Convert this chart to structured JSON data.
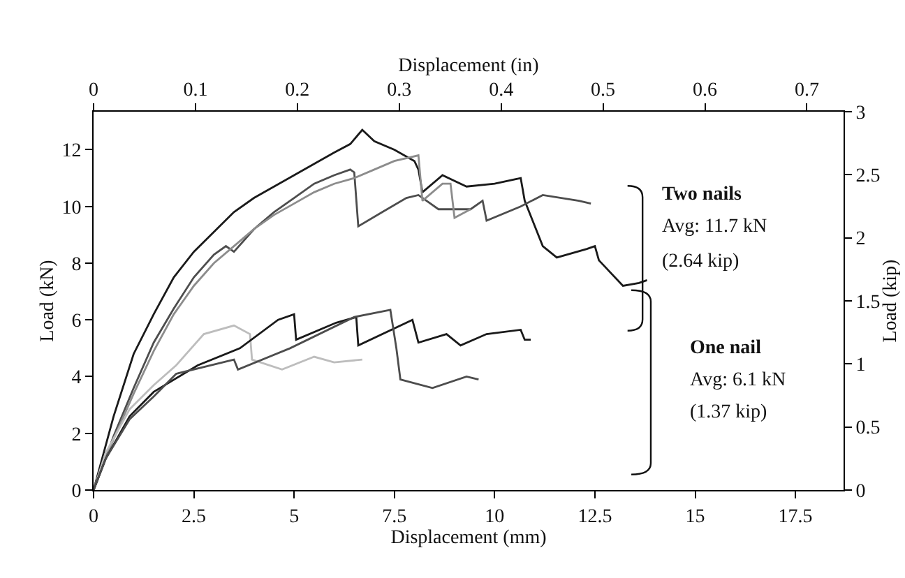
{
  "chart_data": {
    "type": "line",
    "xlabel": "Displacement (mm)",
    "ylabel": "Load (kN)",
    "x2label": "Displacement (in)",
    "y2label": "Load (kip)",
    "xlim": [
      0,
      18.7
    ],
    "xticks": [
      0,
      2.5,
      5,
      7.5,
      10,
      12.5,
      15,
      17.5
    ],
    "x2lim": [
      0,
      0.736
    ],
    "x2ticks": [
      0,
      0.1,
      0.2,
      0.3,
      0.4,
      0.5,
      0.6,
      0.7
    ],
    "ylim": [
      0,
      13.34
    ],
    "yticks": [
      0,
      2,
      4,
      6,
      8,
      10,
      12
    ],
    "y2lim": [
      0,
      3
    ],
    "y2ticks": [
      0,
      0.5,
      1,
      1.5,
      2,
      2.5,
      3
    ],
    "marker": "none",
    "line_style": "solid",
    "annotations": [
      "Two nails",
      "Avg: 11.7 kN",
      "(2.64 kip)",
      "One nail",
      "Avg: 6.1 kN",
      "(1.37 kip)"
    ],
    "series": [
      {
        "color": "#1a1a1a",
        "x": [
          0,
          0.5,
          1,
          1.5,
          2,
          2.5,
          3,
          3.5,
          4,
          4.5,
          5,
          5.5,
          6,
          6.4,
          6.7,
          7,
          7.5,
          8,
          8.1,
          8.2,
          8.7,
          9.3,
          10,
          10.65,
          10.75,
          11.2,
          11.55,
          12.3,
          12.5,
          12.6,
          13.2,
          13.6,
          13.8
        ],
        "values": [
          0,
          2.6,
          4.8,
          6.2,
          7.5,
          8.4,
          9.1,
          9.8,
          10.3,
          10.7,
          11.1,
          11.5,
          11.9,
          12.2,
          12.7,
          12.3,
          12.0,
          11.6,
          11.3,
          10.5,
          11.1,
          10.7,
          10.8,
          11.0,
          10.2,
          8.6,
          8.2,
          8.5,
          8.6,
          8.1,
          7.2,
          7.3,
          7.4
        ]
      },
      {
        "color": "#4d4d4d",
        "x": [
          0,
          0.5,
          1,
          1.5,
          2,
          2.5,
          3,
          3.3,
          3.5,
          4,
          4.5,
          5,
          5.5,
          6,
          6.4,
          6.5,
          6.6,
          7.2,
          7.8,
          8.1,
          8.6,
          9.4,
          9.7,
          9.8,
          10.65,
          11.2,
          12.1,
          12.4
        ],
        "values": [
          0,
          1.9,
          3.6,
          5.2,
          6.4,
          7.5,
          8.3,
          8.6,
          8.4,
          9.2,
          9.8,
          10.3,
          10.8,
          11.1,
          11.3,
          11.2,
          9.3,
          9.8,
          10.3,
          10.4,
          9.9,
          9.9,
          10.2,
          9.5,
          10.0,
          10.4,
          10.2,
          10.1
        ]
      },
      {
        "color": "#8c8c8c",
        "x": [
          0,
          0.5,
          1,
          1.5,
          2,
          2.5,
          3,
          3.5,
          4,
          4.5,
          5,
          5.5,
          6,
          6.5,
          7,
          7.5,
          8.1,
          8.2,
          8.7,
          8.9,
          9.0,
          9.4
        ],
        "values": [
          0,
          1.8,
          3.4,
          4.9,
          6.2,
          7.2,
          8.0,
          8.6,
          9.2,
          9.7,
          10.1,
          10.5,
          10.8,
          11.0,
          11.3,
          11.6,
          11.8,
          10.2,
          10.8,
          10.8,
          9.6,
          9.9
        ]
      },
      {
        "color": "#bdbdbd",
        "x": [
          0,
          0.3,
          0.9,
          1.5,
          2.06,
          2.75,
          3.5,
          3.9,
          3.95,
          4.7,
          5.5,
          6.0,
          6.7
        ],
        "values": [
          0,
          1.3,
          2.85,
          3.7,
          4.4,
          5.5,
          5.8,
          5.5,
          4.6,
          4.25,
          4.7,
          4.5,
          4.6
        ]
      },
      {
        "color": "#1a1a1a",
        "x": [
          0,
          0.3,
          0.9,
          1.5,
          2.6,
          3.65,
          4.6,
          5.0,
          5.05,
          6.05,
          6.55,
          6.6,
          7.95,
          8.1,
          8.8,
          9.15,
          9.8,
          10.65,
          10.75,
          10.9
        ],
        "values": [
          0,
          1.1,
          2.6,
          3.46,
          4.4,
          5.0,
          6.0,
          6.2,
          5.3,
          5.9,
          6.1,
          5.1,
          6.0,
          5.2,
          5.5,
          5.1,
          5.5,
          5.65,
          5.3,
          5.3
        ]
      },
      {
        "color": "#4d4d4d",
        "x": [
          0,
          0.3,
          0.9,
          1.5,
          2.06,
          3.5,
          3.6,
          4.9,
          6.5,
          7.4,
          7.55,
          7.65,
          8.45,
          9.3,
          9.6
        ],
        "values": [
          0,
          1.1,
          2.5,
          3.3,
          4.1,
          4.6,
          4.25,
          5.0,
          6.1,
          6.35,
          5.0,
          3.9,
          3.6,
          4.0,
          3.9
        ]
      }
    ]
  }
}
